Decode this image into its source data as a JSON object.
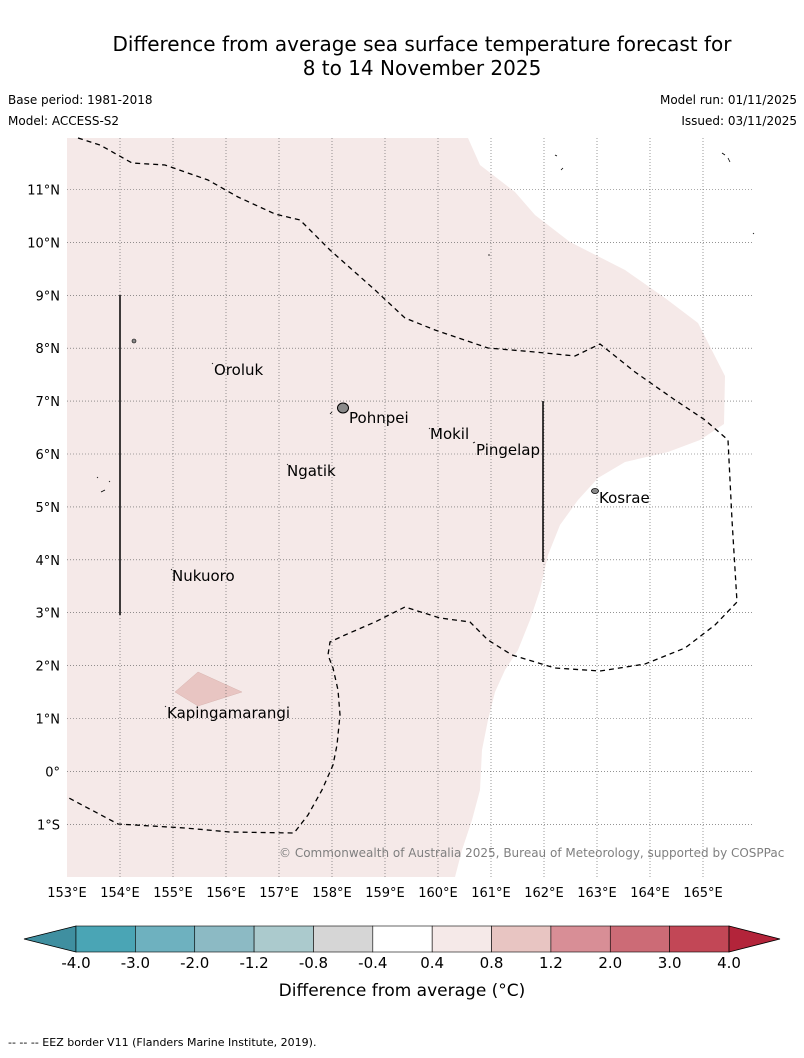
{
  "header": {
    "title_line1": "Difference from average sea surface temperature forecast for",
    "title_line2": "8 to 14 November 2025",
    "base_period": "Base period: 1981-2018",
    "model": "Model: ACCESS-S2",
    "model_run": "Model run: 01/11/2025",
    "issued": "Issued: 03/11/2025"
  },
  "map": {
    "lat_labels": [
      "11°N",
      "10°N",
      "9°N",
      "8°N",
      "7°N",
      "6°N",
      "5°N",
      "4°N",
      "3°N",
      "2°N",
      "1°N",
      "0°",
      "1°S"
    ],
    "lon_labels": [
      "153°E",
      "154°E",
      "155°E",
      "156°E",
      "157°E",
      "158°E",
      "159°E",
      "160°E",
      "161°E",
      "162°E",
      "163°E",
      "164°E",
      "165°E"
    ],
    "places": [
      "Oroluk",
      "Pohnpei",
      "Mokil",
      "Pingelap",
      "Ngatik",
      "Kosrae",
      "Nukuoro",
      "Kapingamarangi"
    ],
    "copyright": "© Commonwealth of Australia 2025, Bureau of Meteorology, supported by COSPPac",
    "anomaly_color": "#f5e9e8",
    "anomaly_color_strong": "#e8c5c2"
  },
  "colorbar": {
    "ticks": [
      "-4.0",
      "-3.0",
      "-2.0",
      "-1.2",
      "-0.8",
      "-0.4",
      "0.4",
      "0.8",
      "1.2",
      "2.0",
      "3.0",
      "4.0"
    ],
    "colors": [
      "#3f8fa0",
      "#4aa5b5",
      "#6eb1bf",
      "#8cbac4",
      "#abcacd",
      "#d6d6d6",
      "#ffffff",
      "#f5e9e8",
      "#e8c5c2",
      "#d88e96",
      "#cc6b76",
      "#c24756",
      "#b3243a"
    ],
    "label": "Difference from average (°C)"
  },
  "footnote": "--  --  -- EEZ border V11 (Flanders Marine Institute, 2019)."
}
